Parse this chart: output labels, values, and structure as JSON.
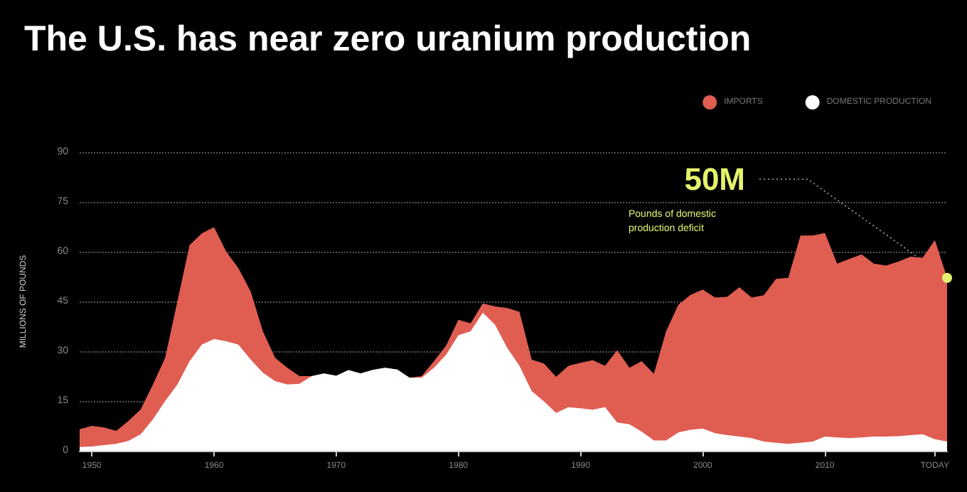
{
  "chart_data": {
    "type": "area",
    "title": "The U.S. has near zero uranium production",
    "ylabel": "MILLIONS OF POUNDS",
    "x": [
      1949,
      1950,
      1951,
      1952,
      1953,
      1954,
      1955,
      1956,
      1957,
      1958,
      1959,
      1960,
      1961,
      1962,
      1963,
      1964,
      1965,
      1966,
      1967,
      1968,
      1969,
      1970,
      1971,
      1972,
      1973,
      1974,
      1975,
      1976,
      1977,
      1978,
      1979,
      1980,
      1981,
      1982,
      1983,
      1984,
      1985,
      1986,
      1987,
      1988,
      1989,
      1990,
      1991,
      1992,
      1993,
      1994,
      1995,
      1996,
      1997,
      1998,
      1999,
      2000,
      2001,
      2002,
      2003,
      2004,
      2005,
      2006,
      2007,
      2008,
      2009,
      2010,
      2011,
      2012,
      2013,
      2014,
      2015,
      2016,
      2017,
      2018,
      2019,
      2020
    ],
    "series": [
      {
        "name": "DOMESTIC PRODUCTION",
        "color": "#ffffff",
        "values": [
          1.1,
          1.3,
          1.7,
          2.1,
          3,
          5,
          9.5,
          15,
          20,
          27,
          32,
          33.7,
          33,
          32,
          27.5,
          23.5,
          21,
          20,
          20.2,
          22.5,
          23.3,
          22.6,
          24.3,
          23.3,
          24.4,
          25,
          24.5,
          22,
          22,
          25,
          29,
          34.8,
          36,
          41.6,
          38,
          31,
          25.6,
          18,
          14.9,
          11.4,
          13.1,
          12.8,
          12.4,
          13.2,
          8.5,
          8,
          5.8,
          3.1,
          3.1,
          5.5,
          6.3,
          6.7,
          5.3,
          4.7,
          4.3,
          3.8,
          2.8,
          2.4,
          2.1,
          2.4,
          2.8,
          4.3,
          4,
          3.8,
          4,
          4.3,
          4.3,
          4.4,
          4.7,
          5,
          3.5,
          2.8
        ]
      },
      {
        "name": "IMPORTS",
        "color": "#e05d52",
        "values": [
          5.4,
          6.2,
          5.3,
          3.9,
          6,
          7.5,
          10.5,
          13,
          25,
          35,
          33.5,
          33.7,
          27,
          23,
          20.5,
          12.5,
          7,
          5,
          2.3,
          0,
          0,
          0,
          0,
          0,
          0,
          0,
          0,
          0,
          0.5,
          2,
          2.7,
          4.7,
          2.4,
          2.8,
          5.5,
          12,
          16.3,
          9.5,
          11.4,
          10.9,
          12.5,
          13.7,
          14.9,
          12.4,
          21.8,
          17,
          21.2,
          20.1,
          32.9,
          38.5,
          40.7,
          41.9,
          40.9,
          41.7,
          45,
          42.4,
          44.1,
          49.4,
          50,
          62.5,
          62.1,
          61.3,
          52.4,
          54,
          55.2,
          52.1,
          51.5,
          52.6,
          53.8,
          53.2,
          60,
          49.3
        ]
      }
    ],
    "stacked": true,
    "xlim": [
      1949,
      2020
    ],
    "xticks": [
      1950,
      1960,
      1970,
      1980,
      1990,
      2000,
      2010,
      {
        "value": 2019,
        "label": "TODAY"
      }
    ],
    "ylim": [
      0,
      90
    ],
    "yticks": [
      0,
      15,
      30,
      45,
      60,
      75,
      90
    ],
    "grid": "y",
    "legend": "top right",
    "annotations": [
      {
        "text": "50M",
        "x": 2020,
        "y": 52.1
      },
      "Pounds of domestic production deficit"
    ]
  }
}
